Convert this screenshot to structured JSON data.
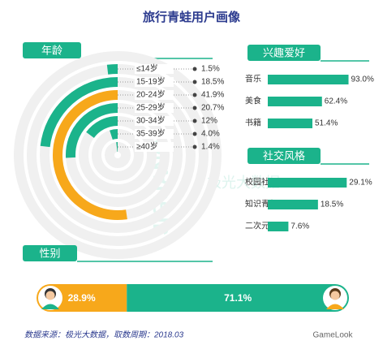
{
  "title": "旅行青蛙用户画像",
  "source": "数据来源：极光大数据，取数周期：2018.03",
  "watermark": {
    "logo": "JIGUANG",
    "name": "极光大数据",
    "credit": "GameLook"
  },
  "chart_data": [
    {
      "type": "radial_bar",
      "title": "年龄",
      "categories": [
        "≤14岁",
        "15-19岁",
        "20-24岁",
        "25-29岁",
        "30-34岁",
        "35-39岁",
        "≥40岁"
      ],
      "values": [
        1.5,
        18.5,
        41.9,
        20.7,
        12,
        4.0,
        1.4
      ],
      "value_labels": [
        "1.5%",
        "18.5%",
        "41.9%",
        "20.7%",
        "12%",
        "4.0%",
        "1.4%"
      ],
      "colors": [
        "#1bb38b",
        "#1bb38b",
        "#f7a81b",
        "#1bb38b",
        "#1bb38b",
        "#1bb38b",
        "#1bb38b"
      ],
      "rlim": [
        0,
        60
      ]
    },
    {
      "type": "hbar",
      "title": "兴趣爱好",
      "categories": [
        "音乐",
        "美食",
        "书籍"
      ],
      "values": [
        93.0,
        62.4,
        51.4
      ],
      "value_labels": [
        "93.0%",
        "62.4%",
        "51.4%"
      ],
      "color": "#1bb38b",
      "xlim": [
        0,
        100
      ]
    },
    {
      "type": "hbar",
      "title": "社交风格",
      "categories": [
        "校园社区",
        "知识青年",
        "二次元"
      ],
      "values": [
        29.1,
        18.5,
        7.6
      ],
      "value_labels": [
        "29.1%",
        "18.5%",
        "7.6%"
      ],
      "color": "#1bb38b",
      "xlim": [
        0,
        32
      ]
    },
    {
      "type": "stacked_hbar",
      "title": "性别",
      "series": [
        {
          "name": "女",
          "color": "#f7a81b",
          "values": [
            28.9
          ],
          "value_labels": [
            "28.9%"
          ]
        },
        {
          "name": "男",
          "color": "#1bb38b",
          "values": [
            71.1
          ],
          "value_labels": [
            "71.1%"
          ]
        }
      ],
      "xlim": [
        0,
        100
      ]
    }
  ]
}
